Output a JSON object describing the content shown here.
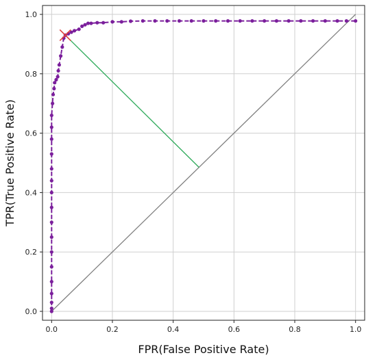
{
  "chart_data": {
    "type": "line",
    "title": "",
    "xlabel": "FPR(False Positive Rate)",
    "ylabel": "TPR(True Positive Rate)",
    "xlim": [
      -0.03,
      1.03
    ],
    "ylim": [
      -0.03,
      1.03
    ],
    "grid": true,
    "x_ticks": [
      0.0,
      0.2,
      0.4,
      0.6,
      0.8,
      1.0
    ],
    "x_tick_labels": [
      "0.0",
      "0.2",
      "0.4",
      "0.6",
      "0.8",
      "1.0"
    ],
    "y_ticks": [
      0.0,
      0.2,
      0.4,
      0.6,
      0.8,
      1.0
    ],
    "y_tick_labels": [
      "0.0",
      "0.2",
      "0.4",
      "0.6",
      "0.8",
      "1.0"
    ],
    "series": [
      {
        "style": "dashed-with-dots",
        "color": "#7b1f9c",
        "x": [
          0.0,
          0.0,
          0.0,
          0.0,
          0.0,
          0.0,
          0.0,
          0.0,
          0.0,
          0.0,
          0.0,
          0.0,
          0.0,
          0.0,
          0.0,
          0.0,
          0.0,
          0.003,
          0.005,
          0.008,
          0.01,
          0.015,
          0.02,
          0.022,
          0.025,
          0.03,
          0.035,
          0.04,
          0.045,
          0.055,
          0.065,
          0.075,
          0.09,
          0.1,
          0.11,
          0.12,
          0.13,
          0.15,
          0.17,
          0.2,
          0.23,
          0.26,
          0.3,
          0.34,
          0.38,
          0.42,
          0.46,
          0.5,
          0.54,
          0.58,
          0.62,
          0.66,
          0.7,
          0.74,
          0.78,
          0.82,
          0.86,
          0.9,
          0.94,
          0.97,
          1.0
        ],
        "y": [
          0.0,
          0.01,
          0.03,
          0.06,
          0.1,
          0.15,
          0.2,
          0.25,
          0.3,
          0.35,
          0.4,
          0.44,
          0.48,
          0.53,
          0.58,
          0.62,
          0.66,
          0.7,
          0.73,
          0.75,
          0.77,
          0.78,
          0.79,
          0.81,
          0.83,
          0.86,
          0.89,
          0.92,
          0.93,
          0.935,
          0.94,
          0.945,
          0.95,
          0.96,
          0.965,
          0.97,
          0.97,
          0.972,
          0.972,
          0.975,
          0.975,
          0.977,
          0.978,
          0.978,
          0.978,
          0.978,
          0.978,
          0.978,
          0.978,
          0.978,
          0.978,
          0.978,
          0.978,
          0.978,
          0.978,
          0.978,
          0.978,
          0.978,
          0.978,
          0.978,
          0.978
        ]
      },
      {
        "style": "solid",
        "color": "#808080",
        "x": [
          0.0,
          1.0
        ],
        "y": [
          0.0,
          1.0
        ]
      },
      {
        "style": "solid",
        "color": "#2eaa5a",
        "x": [
          0.045,
          0.485
        ],
        "y": [
          0.93,
          0.485
        ]
      }
    ],
    "markers": [
      {
        "shape": "x",
        "color": "#e0403a",
        "x": 0.045,
        "y": 0.93
      }
    ]
  }
}
